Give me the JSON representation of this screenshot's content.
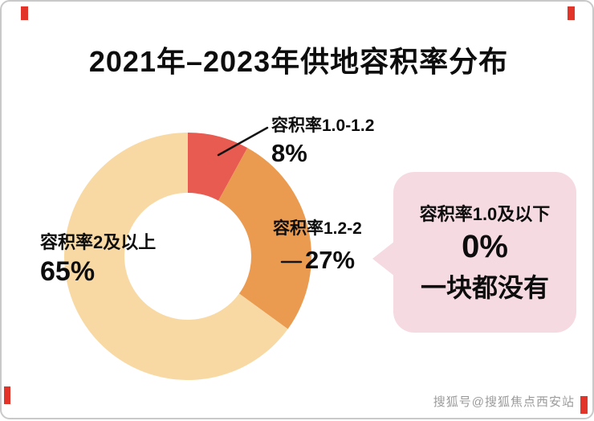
{
  "page": {
    "title": "2021年–2023年供地容积率分布",
    "watermark": "搜狐号@搜狐焦点西安站"
  },
  "chart_data": {
    "type": "pie",
    "subtype": "donut",
    "title": "2021年–2023年供地容积率分布",
    "start_angle_deg": 0,
    "direction": "clockwise",
    "slices": [
      {
        "label": "容积率1.0-1.2",
        "value": 8,
        "value_label": "8%",
        "color": "#e75b50"
      },
      {
        "label": "容积率1.2-2",
        "value": 27,
        "value_label": "27%",
        "color": "#eb9b50"
      },
      {
        "label": "容积率2及以上",
        "value": 65,
        "value_label": "65%",
        "color": "#f8d9a4"
      }
    ],
    "annotation": {
      "label": "容积率1.0及以下",
      "value_label": "0%",
      "note": "一块都没有",
      "background": "#f5dae1"
    }
  }
}
